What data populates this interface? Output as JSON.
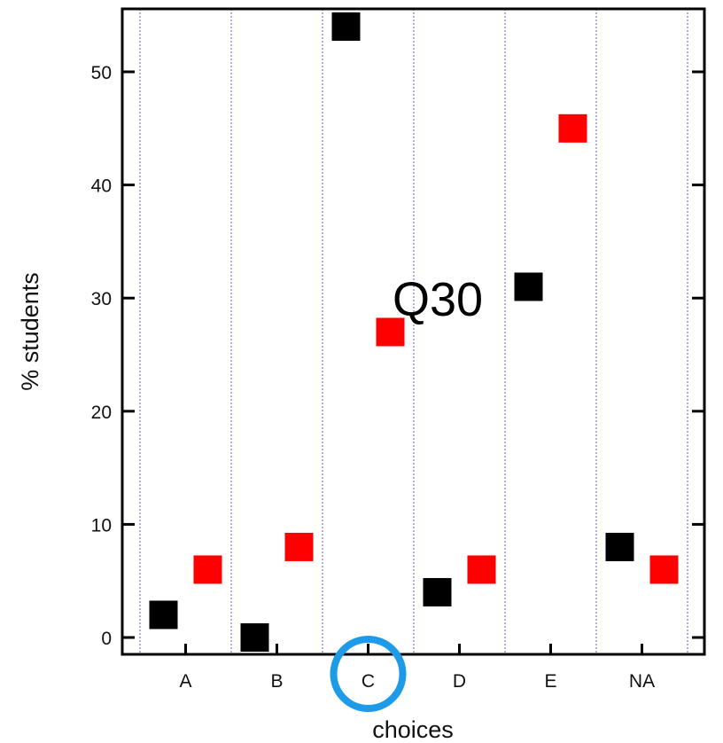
{
  "chart_data": {
    "type": "scatter",
    "title": "",
    "annotation": "Q30",
    "xlabel": "choices",
    "ylabel": "% students",
    "categories": [
      "A",
      "B",
      "C",
      "D",
      "E",
      "NA"
    ],
    "highlighted_category": "C",
    "ylim": [
      -1,
      55.5
    ],
    "yticks": [
      0,
      10,
      20,
      30,
      40,
      50
    ],
    "grid": "vertical dotted lines between categories",
    "series": [
      {
        "color": "#000000",
        "values": [
          2,
          0,
          54,
          4,
          31,
          8
        ]
      },
      {
        "color": "#ff0000",
        "values": [
          6,
          8,
          27,
          6,
          45,
          6
        ]
      }
    ],
    "colors": {
      "highlight_circle": "#1e9be8",
      "grid": "#3333cc"
    }
  }
}
